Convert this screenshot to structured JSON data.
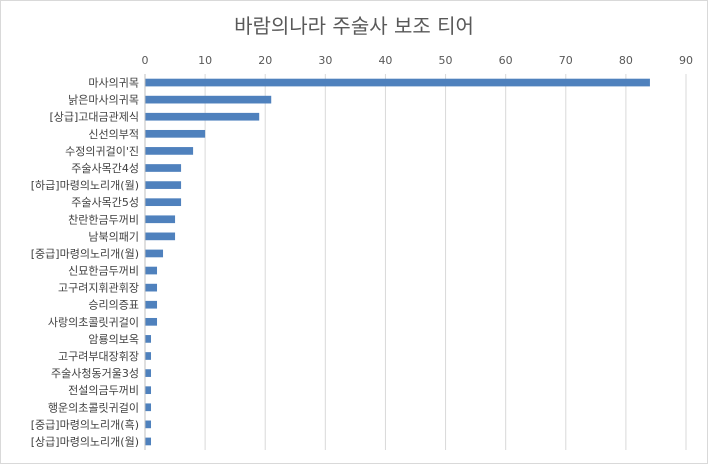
{
  "chart_data": {
    "type": "bar",
    "orientation": "horizontal",
    "title": "바람의나라 주술사 보조 티어",
    "xlabel": "",
    "ylabel": "",
    "xlim": [
      0,
      90
    ],
    "x_ticks": [
      0,
      10,
      20,
      30,
      40,
      50,
      60,
      70,
      80,
      90
    ],
    "x_axis_position": "top",
    "grid": true,
    "legend": "none",
    "bar_color": "#4f81bd",
    "categories": [
      "마사의귀목",
      "낡은마사의귀목",
      "[상급]고대금관제식",
      "신선의부적",
      "수정의귀걸이'진",
      "주술사목간4성",
      "[하급]마령의노리개(월)",
      "주술사목간5성",
      "찬란한금두꺼비",
      "남북의패기",
      "[중급]마령의노리개(월)",
      "신묘한금두꺼비",
      "고구려지휘관휘장",
      "승리의증표",
      "사랑의초콜릿귀걸이",
      "암룡의보옥",
      "고구려부대장휘장",
      "주술사청동거울3성",
      "전설의금두꺼비",
      "행운의초콜릿귀걸이",
      "[중급]마령의노리개(흑)",
      "[상급]마령의노리개(월)"
    ],
    "values": [
      84,
      21,
      19,
      10,
      8,
      6,
      6,
      6,
      5,
      5,
      3,
      2,
      2,
      2,
      2,
      1,
      1,
      1,
      1,
      1,
      1,
      1
    ]
  }
}
